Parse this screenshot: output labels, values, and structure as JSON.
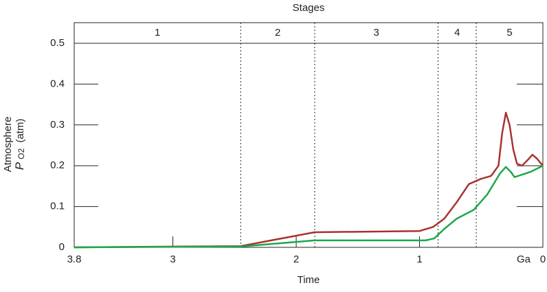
{
  "chart_data": {
    "type": "line",
    "title": "Stages",
    "stage_labels": [
      "1",
      "2",
      "3",
      "4",
      "5"
    ],
    "stage_boundaries": [
      2.45,
      1.85,
      0.85,
      0.54
    ],
    "x_label": "Time",
    "x_unit_label": "Ga",
    "y_label": {
      "line1": "Atmosphere",
      "symbol": "P",
      "subscript": "O2",
      "unit": "(atm)"
    },
    "xlim": [
      3.8,
      0
    ],
    "xticks": [
      3.8,
      3,
      2,
      1,
      0
    ],
    "ylim": [
      0,
      0.5
    ],
    "yticks": [
      0,
      0.1,
      0.2,
      0.3,
      0.4,
      0.5
    ],
    "series": [
      {
        "name": "upper",
        "color": "#a8322e",
        "x": [
          3.8,
          2.45,
          1.85,
          1.0,
          0.89,
          0.8,
          0.7,
          0.6,
          0.5,
          0.42,
          0.36,
          0.33,
          0.3,
          0.27,
          0.24,
          0.21,
          0.17,
          0.12,
          0.085,
          0.05,
          0
        ],
        "values": [
          0,
          0.003,
          0.037,
          0.04,
          0.05,
          0.07,
          0.11,
          0.155,
          0.168,
          0.175,
          0.2,
          0.28,
          0.33,
          0.3,
          0.24,
          0.205,
          0.2,
          0.215,
          0.227,
          0.218,
          0.2
        ]
      },
      {
        "name": "lower",
        "color": "#1aa84a",
        "x": [
          3.8,
          2.45,
          1.85,
          0.95,
          0.88,
          0.8,
          0.7,
          0.56,
          0.45,
          0.35,
          0.3,
          0.26,
          0.23,
          0.1,
          0
        ],
        "values": [
          0,
          0.002,
          0.017,
          0.017,
          0.022,
          0.045,
          0.07,
          0.092,
          0.13,
          0.18,
          0.197,
          0.185,
          0.172,
          0.185,
          0.2
        ]
      }
    ]
  }
}
